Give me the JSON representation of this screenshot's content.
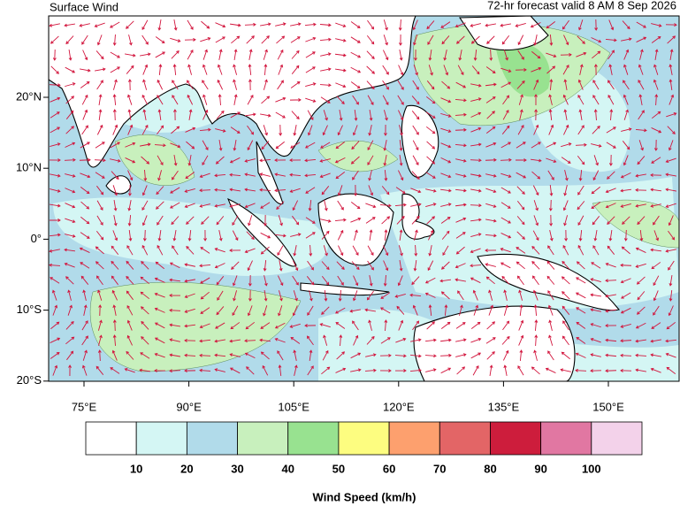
{
  "title": "Surface Wind",
  "subtitle": "72-hr forecast valid 8 AM 8 Sep 2026",
  "map": {
    "lat_labels": [
      "20°N",
      "10°N",
      "0°",
      "10°S",
      "20°S"
    ],
    "lon_labels": [
      "75°E",
      "90°E",
      "105°E",
      "120°E",
      "135°E",
      "150°E"
    ]
  },
  "colorbar": {
    "title": "Wind Speed (km/h)",
    "colors": [
      "#ffffff",
      "#d4f6f4",
      "#b1dbea",
      "#c8f0bd",
      "#98e290",
      "#fdfd80",
      "#fda06e",
      "#e36566",
      "#cd1d3c",
      "#e177a2",
      "#f3d2ea"
    ],
    "labels": [
      10,
      20,
      30,
      40,
      50,
      60,
      70,
      80,
      90,
      100
    ]
  }
}
